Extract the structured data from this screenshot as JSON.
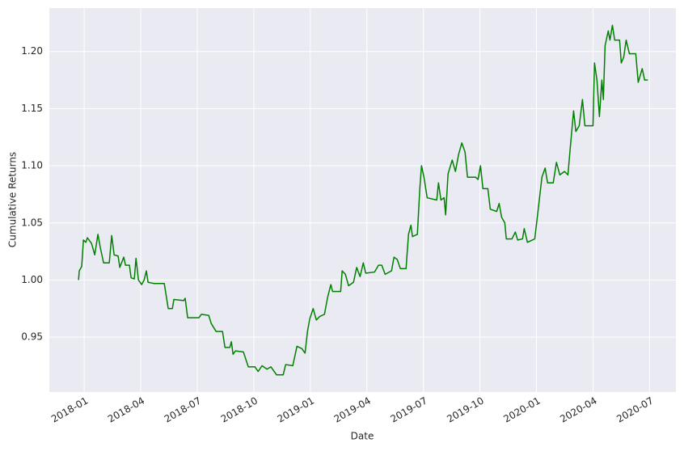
{
  "chart_data": {
    "type": "line",
    "xlabel": "Date",
    "ylabel": "Cumulative Returns",
    "x": [
      -0.3,
      -0.26,
      -0.13,
      -0.04,
      0.09,
      0.17,
      0.39,
      0.56,
      0.73,
      0.86,
      1.03,
      1.33,
      1.46,
      1.59,
      1.8,
      1.89,
      2.1,
      2.19,
      2.4,
      2.49,
      2.66,
      2.75,
      2.88,
      3.05,
      3.18,
      3.3,
      3.39,
      3.69,
      4.25,
      4.46,
      4.68,
      4.76,
      5.28,
      5.36,
      5.49,
      6.09,
      6.22,
      6.61,
      6.74,
      7.0,
      7.34,
      7.47,
      7.73,
      7.81,
      7.9,
      8.03,
      8.45,
      8.63,
      8.71,
      9.06,
      9.23,
      9.44,
      9.7,
      9.91,
      10.21,
      10.56,
      10.69,
      11.07,
      11.29,
      11.55,
      11.72,
      11.85,
      11.97,
      12.15,
      12.32,
      12.49,
      12.75,
      12.92,
      13.09,
      13.18,
      13.61,
      13.69,
      13.86,
      14.03,
      14.29,
      14.46,
      14.64,
      14.81,
      14.94,
      15.41,
      15.62,
      15.79,
      15.97,
      16.31,
      16.44,
      16.61,
      16.78,
      17.08,
      17.21,
      17.34,
      17.42,
      17.68,
      17.81,
      17.9,
      18.03,
      18.2,
      18.71,
      18.8,
      18.93,
      19.1,
      19.18,
      19.31,
      19.53,
      19.7,
      19.87,
      20.04,
      20.21,
      20.34,
      20.77,
      20.9,
      21.03,
      21.16,
      21.42,
      21.55,
      21.89,
      22.02,
      22.15,
      22.32,
      22.4,
      22.7,
      22.88,
      23.0,
      23.26,
      23.35,
      23.52,
      23.91,
      24.08,
      24.29,
      24.46,
      24.59,
      24.89,
      25.06,
      25.24,
      25.49,
      25.67,
      25.79,
      25.97,
      26.09,
      26.27,
      26.44,
      26.57,
      27.0,
      27.08,
      27.21,
      27.34,
      27.47,
      27.55,
      27.64,
      27.81,
      27.9,
      28.03,
      28.15,
      28.41,
      28.5,
      28.63,
      28.76,
      28.93,
      29.27,
      29.4,
      29.61,
      29.74,
      29.91
    ],
    "series": [
      {
        "color": "#008000",
        "values": [
          1.0,
          1.008,
          1.012,
          1.035,
          1.033,
          1.037,
          1.032,
          1.022,
          1.04,
          1.028,
          1.015,
          1.015,
          1.039,
          1.022,
          1.021,
          1.011,
          1.02,
          1.013,
          1.013,
          1.002,
          1.001,
          1.019,
          1.0,
          0.996,
          1.0,
          1.008,
          0.998,
          0.997,
          0.997,
          0.975,
          0.975,
          0.983,
          0.982,
          0.984,
          0.967,
          0.967,
          0.97,
          0.969,
          0.962,
          0.955,
          0.955,
          0.941,
          0.941,
          0.946,
          0.935,
          0.938,
          0.937,
          0.928,
          0.924,
          0.924,
          0.92,
          0.925,
          0.922,
          0.924,
          0.917,
          0.917,
          0.926,
          0.925,
          0.942,
          0.94,
          0.936,
          0.955,
          0.966,
          0.975,
          0.965,
          0.968,
          0.97,
          0.985,
          0.996,
          0.99,
          0.99,
          1.008,
          1.005,
          0.995,
          0.998,
          1.011,
          1.003,
          1.015,
          1.006,
          1.007,
          1.013,
          1.013,
          1.005,
          1.008,
          1.02,
          1.018,
          1.01,
          1.01,
          1.04,
          1.048,
          1.038,
          1.04,
          1.08,
          1.1,
          1.09,
          1.072,
          1.07,
          1.085,
          1.07,
          1.072,
          1.057,
          1.093,
          1.105,
          1.095,
          1.11,
          1.12,
          1.112,
          1.09,
          1.09,
          1.088,
          1.1,
          1.08,
          1.08,
          1.062,
          1.06,
          1.067,
          1.055,
          1.05,
          1.036,
          1.036,
          1.042,
          1.035,
          1.036,
          1.045,
          1.033,
          1.036,
          1.06,
          1.09,
          1.098,
          1.085,
          1.085,
          1.103,
          1.092,
          1.095,
          1.092,
          1.115,
          1.148,
          1.13,
          1.135,
          1.158,
          1.135,
          1.135,
          1.19,
          1.175,
          1.143,
          1.175,
          1.158,
          1.205,
          1.218,
          1.21,
          1.223,
          1.21,
          1.21,
          1.19,
          1.195,
          1.21,
          1.198,
          1.198,
          1.173,
          1.185,
          1.175,
          1.175
        ]
      }
    ],
    "xlim": [
      -1.85,
      31.4
    ],
    "xticks": [
      {
        "value": 0,
        "label": "2018-01"
      },
      {
        "value": 3,
        "label": "2018-04"
      },
      {
        "value": 6,
        "label": "2018-07"
      },
      {
        "value": 9,
        "label": "2018-10"
      },
      {
        "value": 12,
        "label": "2019-01"
      },
      {
        "value": 15,
        "label": "2019-04"
      },
      {
        "value": 18,
        "label": "2019-07"
      },
      {
        "value": 21,
        "label": "2019-10"
      },
      {
        "value": 24,
        "label": "2020-01"
      },
      {
        "value": 27,
        "label": "2020-04"
      },
      {
        "value": 30,
        "label": "2020-07"
      }
    ],
    "ylim": [
      0.902,
      1.238
    ],
    "yticks": [
      0.95,
      {
        "value": 1.0,
        "label": "1.00"
      },
      1.05,
      {
        "value": 1.1,
        "label": "1.10"
      },
      1.15,
      {
        "value": 1.2,
        "label": "1.20"
      }
    ],
    "grid": true,
    "background": "#eaeaf2"
  }
}
